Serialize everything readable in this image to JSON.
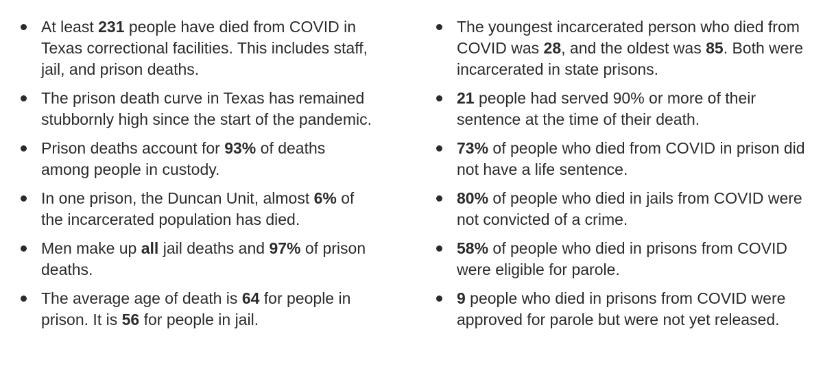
{
  "left_column": [
    [
      {
        "t": "At least ",
        "b": false
      },
      {
        "t": "231",
        "b": true
      },
      {
        "t": " people have died from COVID in Texas correctional facilities. This includes staff, jail, and prison deaths.",
        "b": false
      }
    ],
    [
      {
        "t": "The prison death curve in Texas has remained stubbornly high since the start of the pandemic.",
        "b": false
      }
    ],
    [
      {
        "t": "Prison deaths account for ",
        "b": false
      },
      {
        "t": "93%",
        "b": true
      },
      {
        "t": " of deaths among people in custody.",
        "b": false
      }
    ],
    [
      {
        "t": "In one prison, the Duncan Unit, almost ",
        "b": false
      },
      {
        "t": "6%",
        "b": true
      },
      {
        "t": " of the incarcerated population has died.",
        "b": false
      }
    ],
    [
      {
        "t": "Men make up ",
        "b": false
      },
      {
        "t": "all",
        "b": true
      },
      {
        "t": " jail deaths and ",
        "b": false
      },
      {
        "t": "97%",
        "b": true
      },
      {
        "t": " of prison deaths.",
        "b": false
      }
    ],
    [
      {
        "t": "The average age of death is ",
        "b": false
      },
      {
        "t": "64",
        "b": true
      },
      {
        "t": " for people in prison. It is ",
        "b": false
      },
      {
        "t": "56",
        "b": true
      },
      {
        "t": " for people in jail.",
        "b": false
      }
    ]
  ],
  "right_column": [
    [
      {
        "t": "The youngest incarcerated person who died from COVID was ",
        "b": false
      },
      {
        "t": "28",
        "b": true
      },
      {
        "t": ", and the oldest was ",
        "b": false
      },
      {
        "t": "85",
        "b": true
      },
      {
        "t": ". Both were incarcerated in state prisons.",
        "b": false
      }
    ],
    [
      {
        "t": "21",
        "b": true
      },
      {
        "t": " people had served 90% or more of their sentence at the time of their death.",
        "b": false
      }
    ],
    [
      {
        "t": "73%",
        "b": true
      },
      {
        "t": " of people who died from COVID in prison did not have a life sentence.",
        "b": false
      }
    ],
    [
      {
        "t": "80%",
        "b": true
      },
      {
        "t": " of people who died in jails from COVID were not convicted of a crime.",
        "b": false
      }
    ],
    [
      {
        "t": "58%",
        "b": true
      },
      {
        "t": " of people who died in prisons from COVID were eligible for parole.",
        "b": false
      }
    ],
    [
      {
        "t": "9",
        "b": true
      },
      {
        "t": " people who died in prisons from COVID were approved for parole but were not yet released.",
        "b": false
      }
    ]
  ]
}
